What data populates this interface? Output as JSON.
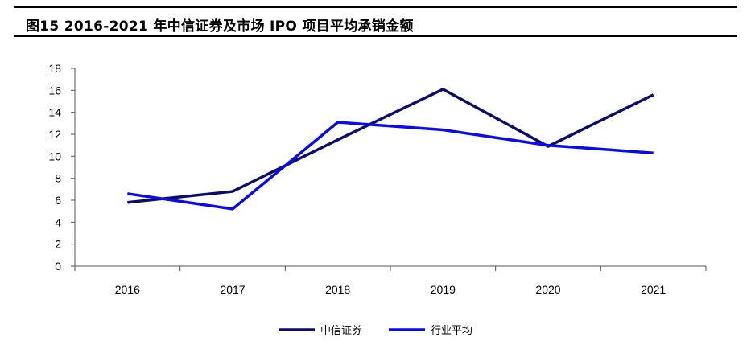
{
  "figure_title": "图15  2016-2021 年中信证券及市场 IPO 项目平均承销金额",
  "chart_data": {
    "type": "line",
    "title": "",
    "xlabel": "",
    "ylabel": "",
    "categories": [
      "2016",
      "2017",
      "2018",
      "2019",
      "2020",
      "2021"
    ],
    "ylim": [
      0,
      18
    ],
    "yticks": [
      0,
      2,
      4,
      6,
      8,
      10,
      12,
      14,
      16,
      18
    ],
    "grid": false,
    "legend_position": "bottom-center",
    "series": [
      {
        "name": "中信证券",
        "color": "#0c0c6e",
        "values": [
          5.8,
          6.8,
          11.5,
          16.1,
          10.9,
          15.6
        ]
      },
      {
        "name": "行业平均",
        "color": "#0a0af0",
        "values": [
          6.6,
          5.2,
          13.1,
          12.4,
          11.0,
          10.3
        ]
      }
    ]
  }
}
